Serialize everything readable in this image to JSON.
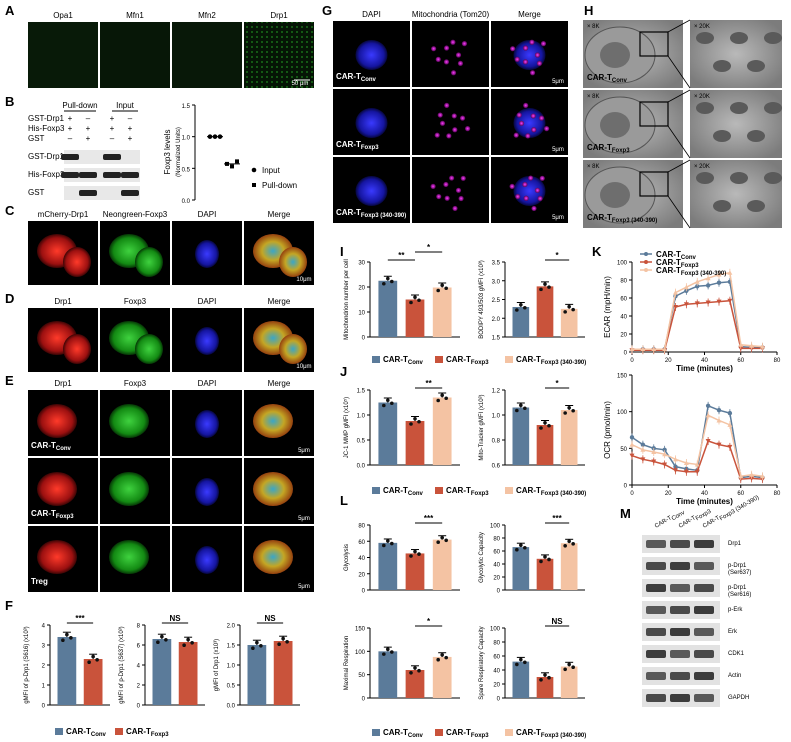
{
  "panels": {
    "A": {
      "letter": "A",
      "labels": [
        "Opa1",
        "Mfn1",
        "Mfn2",
        "Drp1"
      ],
      "scale": "50 μm"
    },
    "B": {
      "letter": "B",
      "pulldown": "Pull-down",
      "input": "Input",
      "rows": [
        {
          "name": "GST-Drp1",
          "signs": [
            "+",
            "–",
            "+",
            "–"
          ]
        },
        {
          "name": "His-Foxp3",
          "signs": [
            "+",
            "+",
            "+",
            "+"
          ]
        },
        {
          "name": "GST",
          "signs": [
            "–",
            "+",
            "–",
            "+"
          ]
        }
      ],
      "blots": [
        "GST-Drp1",
        "His-Foxp3",
        "GST"
      ],
      "ylabel1": "Foxp3 levels",
      "ylabel2": "(Normalized Units)",
      "yticks": [
        "1.5",
        "1.0",
        "0.5",
        "0.0"
      ],
      "legend": [
        "Input",
        "Pull-down"
      ]
    },
    "C": {
      "letter": "C",
      "labels": [
        "mCherry-Drp1",
        "Neongreen-Foxp3",
        "DAPI",
        "Merge"
      ],
      "scale": "10μm"
    },
    "D": {
      "letter": "D",
      "labels": [
        "Drp1",
        "Foxp3",
        "DAPI",
        "Merge"
      ],
      "scale": "10μm"
    },
    "E": {
      "letter": "E",
      "labels": [
        "Drp1",
        "Foxp3",
        "DAPI",
        "Merge"
      ],
      "rows": [
        "CAR-T",
        "CAR-T",
        "Treg"
      ],
      "subs": [
        "Conv",
        "Foxp3",
        ""
      ],
      "scale": "5μm"
    },
    "F": {
      "letter": "F",
      "sig": [
        "***",
        "NS",
        "NS"
      ],
      "ylabels": [
        "gMFI of p-Drp1 (S616) (x10³)",
        "gMFI of p-Drp1 (S637) (x10³)",
        "gMFI of Drp1 (x10³)"
      ],
      "yticks": [
        [
          "4",
          "3",
          "2",
          "1",
          "0"
        ],
        [
          "8",
          "6",
          "4",
          "2",
          "0"
        ],
        [
          "2.0",
          "1.5",
          "1.0",
          "0.5",
          "0.0"
        ]
      ],
      "legend": [
        "CAR-T",
        "CAR-T"
      ],
      "legend_subs": [
        "Conv",
        "Foxp3"
      ]
    },
    "G": {
      "letter": "G",
      "labels": [
        "DAPI",
        "Mitochondria (Tom20)",
        "Merge"
      ],
      "rows": [
        "CAR-T",
        "CAR-T",
        "CAR-T"
      ],
      "subs": [
        "Conv",
        "Foxp3",
        "Foxp3 (340-390)"
      ],
      "scale": "5μm"
    },
    "H": {
      "letter": "H",
      "mags": [
        "× 8K",
        "× 20K"
      ],
      "rows": [
        "CAR-T",
        "CAR-T",
        "CAR-T"
      ],
      "subs": [
        "Conv",
        "Foxp3",
        "Foxp3 (340-390)"
      ]
    },
    "I": {
      "letter": "I",
      "sig": [
        "**",
        "*",
        "*"
      ],
      "ylabels": [
        "Mitochondrion",
        "number per cell",
        "BODIPY 493/503 gMFI (x10³)"
      ],
      "yticks1": [
        "30",
        "20",
        "10",
        "0"
      ],
      "yticks2": [
        "3.5",
        "3.0",
        "2.5",
        "2.0",
        "1.5"
      ],
      "legend": [
        "CAR-T",
        "CAR-T",
        "CAR-T"
      ],
      "legend_subs": [
        "Conv",
        "Foxp3",
        "Foxp3 (340-390)"
      ]
    },
    "J": {
      "letter": "J",
      "sig": [
        "**",
        "*"
      ],
      "ylabels": [
        "JC-1 MMP gMFI (x10⁵)",
        "Mito-Tracker gMFI (x10³)"
      ],
      "yticks1": [
        "1.5",
        "1.0",
        "0.5",
        "0.0"
      ],
      "yticks2": [
        "1.2",
        "1.0",
        "0.8",
        "0.6"
      ],
      "legend": [
        "CAR-T",
        "CAR-T",
        "CAR-T"
      ],
      "legend_subs": [
        "Conv",
        "Foxp3",
        "Foxp3 (340-390)"
      ]
    },
    "K": {
      "letter": "K",
      "ylabel1": "ECAR (mpH/min)",
      "ylabel2": "OCR (pmol/min)",
      "xlabel": "Time (minutes)",
      "yticks1": [
        "100",
        "80",
        "60",
        "40",
        "20",
        "0"
      ],
      "yticks2": [
        "150",
        "100",
        "50",
        "0"
      ],
      "xticks": [
        "0",
        "20",
        "40",
        "60",
        "80"
      ],
      "legend": [
        "CAR-T",
        "CAR-T",
        "CAR-T"
      ],
      "legend_subs": [
        "Conv",
        "Foxp3",
        "Foxp3 (340-390)"
      ]
    },
    "L": {
      "letter": "L",
      "sig": [
        "***",
        "***",
        "*",
        "NS"
      ],
      "ylabels": [
        "Glycolysis",
        "Glycolytic Capacity",
        "Maximal Respiration",
        "Spare Respiratory Capacity"
      ],
      "yticks": [
        [
          "80",
          "60",
          "40",
          "20",
          "0"
        ],
        [
          "100",
          "80",
          "60",
          "40",
          "20",
          "0"
        ],
        [
          "150",
          "100",
          "50",
          "0"
        ],
        [
          "100",
          "80",
          "60",
          "40",
          "20",
          "0"
        ]
      ],
      "legend": [
        "CAR-T",
        "CAR-T",
        "CAR-T"
      ],
      "legend_subs": [
        "Conv",
        "Foxp3",
        "Foxp3 (340-390)"
      ]
    },
    "M": {
      "letter": "M",
      "cols": [
        "CAR-T",
        "CAR-T",
        "CAR-T"
      ],
      "col_subs": [
        "Conv",
        "Foxp3",
        "Foxp3 (340-390)"
      ],
      "bands": [
        "Drp1",
        "p-Drp1",
        "p-Drp1",
        "p-Erk",
        "Erk",
        "CDK1",
        "Actin",
        "GAPDH"
      ],
      "band_subs": [
        "",
        "(Ser637)",
        "(Ser616)",
        "",
        "",
        "",
        "",
        ""
      ]
    }
  },
  "colors": {
    "conv": "#5b7b9a",
    "foxp3": "#c9533b",
    "mut": "#f4c3a3"
  },
  "chart_data": [
    {
      "type": "scatter",
      "panel": "B",
      "ylabel": "Foxp3 levels (Normalized Units)",
      "ylim": [
        0,
        1.5
      ],
      "series": [
        {
          "name": "Input",
          "values": [
            1.0,
            1.0,
            1.0
          ]
        },
        {
          "name": "Pull-down",
          "values": [
            0.57,
            0.53,
            0.61
          ]
        }
      ]
    },
    {
      "type": "bar",
      "panel": "F1",
      "categories": [
        "Conv",
        "Foxp3"
      ],
      "values": [
        3.4,
        2.3
      ],
      "ylim": [
        0,
        4
      ]
    },
    {
      "type": "bar",
      "panel": "F2",
      "categories": [
        "Conv",
        "Foxp3"
      ],
      "values": [
        6.6,
        6.3
      ],
      "ylim": [
        0,
        8
      ]
    },
    {
      "type": "bar",
      "panel": "F3",
      "categories": [
        "Conv",
        "Foxp3"
      ],
      "values": [
        1.5,
        1.6
      ],
      "ylim": [
        0,
        2
      ]
    },
    {
      "type": "bar",
      "panel": "I1",
      "categories": [
        "Conv",
        "Foxp3",
        "Foxp3 (340-390)"
      ],
      "values": [
        22.5,
        15,
        19.8
      ],
      "ylim": [
        0,
        30
      ]
    },
    {
      "type": "bar",
      "panel": "I2",
      "categories": [
        "Conv",
        "Foxp3",
        "Foxp3 (340-390)"
      ],
      "values": [
        2.3,
        2.85,
        2.25
      ],
      "ylim": [
        1.5,
        3.5
      ]
    },
    {
      "type": "bar",
      "panel": "J1",
      "categories": [
        "Conv",
        "Foxp3",
        "Foxp3 (340-390)"
      ],
      "values": [
        1.25,
        0.88,
        1.35
      ],
      "ylim": [
        0,
        1.5
      ]
    },
    {
      "type": "bar",
      "panel": "J2",
      "categories": [
        "Conv",
        "Foxp3",
        "Foxp3 (340-390)"
      ],
      "values": [
        1.06,
        0.92,
        1.04
      ],
      "ylim": [
        0.6,
        1.2
      ]
    },
    {
      "type": "line",
      "panel": "K-ECAR",
      "x": [
        0,
        6,
        12,
        18,
        24,
        30,
        36,
        42,
        48,
        54,
        60,
        66,
        72
      ],
      "ylim": [
        0,
        100
      ],
      "xlim": [
        0,
        80
      ],
      "series": [
        {
          "name": "Conv",
          "values": [
            2,
            3,
            3,
            3,
            62,
            68,
            73,
            74,
            77,
            78,
            6,
            5,
            5
          ]
        },
        {
          "name": "Foxp3",
          "values": [
            2,
            2,
            2,
            2,
            50,
            53,
            54,
            55,
            56,
            57,
            4,
            4,
            4
          ]
        },
        {
          "name": "Foxp3 (340-390)",
          "values": [
            3,
            3,
            3,
            3,
            66,
            72,
            78,
            82,
            86,
            88,
            8,
            7,
            6
          ]
        }
      ]
    },
    {
      "type": "line",
      "panel": "K-OCR",
      "x": [
        0,
        6,
        12,
        18,
        24,
        30,
        36,
        42,
        48,
        54,
        60,
        66,
        72
      ],
      "ylim": [
        0,
        150
      ],
      "xlim": [
        0,
        80
      ],
      "series": [
        {
          "name": "Conv",
          "values": [
            65,
            55,
            50,
            48,
            25,
            22,
            20,
            108,
            102,
            98,
            10,
            12,
            10
          ]
        },
        {
          "name": "Foxp3",
          "values": [
            40,
            35,
            32,
            28,
            20,
            18,
            18,
            60,
            55,
            52,
            8,
            9,
            8
          ]
        },
        {
          "name": "Foxp3 (340-390)",
          "values": [
            55,
            48,
            45,
            42,
            35,
            30,
            28,
            95,
            88,
            82,
            12,
            14,
            12
          ]
        }
      ]
    },
    {
      "type": "bar",
      "panel": "L1",
      "categories": [
        "Conv",
        "Foxp3",
        "Foxp3 (340-390)"
      ],
      "values": [
        58,
        45,
        62
      ],
      "ylim": [
        0,
        80
      ]
    },
    {
      "type": "bar",
      "panel": "L2",
      "categories": [
        "Conv",
        "Foxp3",
        "Foxp3 (340-390)"
      ],
      "values": [
        66,
        48,
        72
      ],
      "ylim": [
        0,
        100
      ]
    },
    {
      "type": "bar",
      "panel": "L3",
      "categories": [
        "Conv",
        "Foxp3",
        "Foxp3 (340-390)"
      ],
      "values": [
        100,
        60,
        88
      ],
      "ylim": [
        0,
        150
      ]
    },
    {
      "type": "bar",
      "panel": "L4",
      "categories": [
        "Conv",
        "Foxp3",
        "Foxp3 (340-390)"
      ],
      "values": [
        52,
        30,
        45
      ],
      "ylim": [
        0,
        100
      ]
    }
  ]
}
